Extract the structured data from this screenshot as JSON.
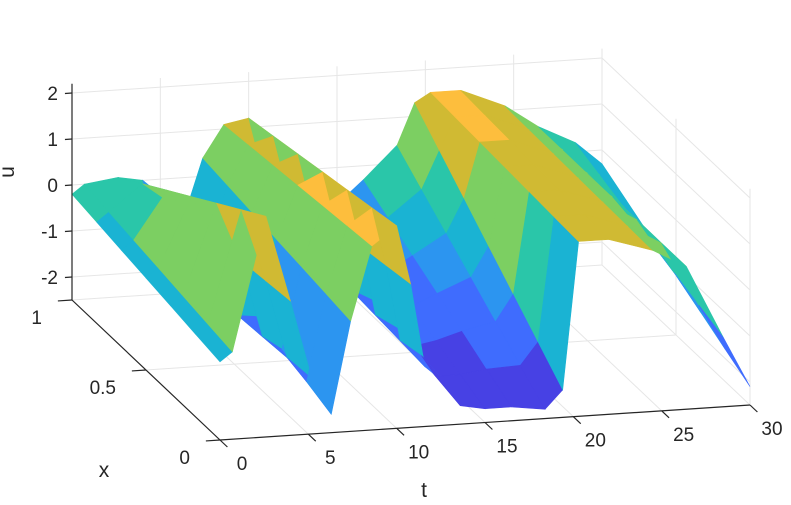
{
  "chart_data": {
    "type": "surface",
    "title": "",
    "xlabel": "t",
    "ylabel": "x",
    "zlabel": "u",
    "t_ticks": [
      "0",
      "5",
      "10",
      "15",
      "20",
      "25",
      "30"
    ],
    "x_ticks": [
      "0",
      "0.5",
      "1"
    ],
    "u_ticks": [
      "-2",
      "-1",
      "0",
      "1",
      "2"
    ],
    "t_range": [
      0,
      30
    ],
    "x_range": [
      0,
      1
    ],
    "u_range": [
      -2.5,
      2.2
    ],
    "grid": true,
    "colormap": [
      "#3e26a8",
      "#4741e4",
      "#3f6cfe",
      "#2c95f0",
      "#1ab3d3",
      "#2ac6a9",
      "#7ccf62",
      "#d0ba33",
      "#fdbe3d",
      "#f9fb15"
    ],
    "surface_series": [
      {
        "name": "front",
        "t": [
          0,
          0.7,
          2.6,
          4.0,
          5.2,
          6.3,
          7.4,
          8.6,
          10.0,
          10.8,
          11.6,
          12.8,
          13.6,
          15.0,
          16.5,
          18.4,
          19.4,
          20.3,
          22.0,
          24.5,
          26.4,
          28.5,
          30.0
        ],
        "u": [
          -0.8,
          -0.6,
          2.3,
          0.4,
          -1.3,
          -2.1,
          -0.1,
          1.5,
          1.9,
          0.6,
          -1.2,
          -1.6,
          -2.1,
          -2.2,
          -2.2,
          -2.3,
          -1.9,
          1.3,
          1.3,
          1.0,
          0.6,
          -1.0,
          -2.1
        ]
      },
      {
        "name": "back",
        "t": [
          0,
          0.7,
          2.6,
          4.0,
          5.2,
          6.3,
          7.4,
          8.6,
          10.0,
          10.8,
          11.6,
          12.8,
          13.6,
          15.0,
          16.5,
          18.4,
          19.4,
          20.3,
          22.0,
          24.5,
          26.4,
          28.5,
          30.0
        ],
        "u": [
          -0.2,
          0.0,
          0.1,
          0.0,
          -1.6,
          -0.9,
          0.4,
          1.1,
          1.2,
          0.0,
          -0.9,
          -1.0,
          -1.3,
          -0.8,
          -0.3,
          0.4,
          1.3,
          1.5,
          1.5,
          1.1,
          0.6,
          0.2,
          -0.3
        ]
      }
    ]
  }
}
